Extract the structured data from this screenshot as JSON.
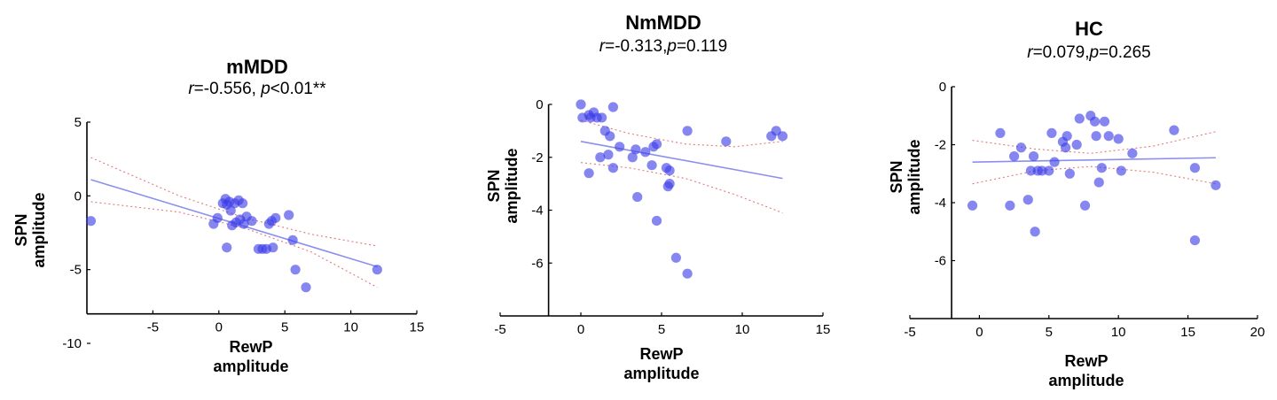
{
  "chart_data": [
    {
      "type": "scatter",
      "title": "mMDD",
      "stat": {
        "r_label": "r",
        "r_text": "=-0.556, ",
        "p_label": "p",
        "p_text": "<0.01**"
      },
      "xlabel": [
        "RewP",
        "amplitude"
      ],
      "ylabel": [
        "SPN",
        "amplitude"
      ],
      "xlim": [
        -10,
        15
      ],
      "ylim": [
        -10,
        5
      ],
      "xticks": [
        -5,
        0,
        5,
        10,
        15
      ],
      "yticks": [
        -10,
        -5,
        0,
        5
      ],
      "points": [
        [
          -9.7,
          -1.7
        ],
        [
          -0.4,
          -1.9
        ],
        [
          -0.1,
          -1.5
        ],
        [
          0.3,
          -0.5
        ],
        [
          0.5,
          -0.2
        ],
        [
          0.6,
          -0.6
        ],
        [
          0.8,
          -0.4
        ],
        [
          0.9,
          -1.0
        ],
        [
          1.0,
          -2.0
        ],
        [
          1.2,
          -0.5
        ],
        [
          1.3,
          -1.8
        ],
        [
          1.5,
          -0.3
        ],
        [
          1.6,
          -1.6
        ],
        [
          1.8,
          -0.5
        ],
        [
          1.9,
          -1.9
        ],
        [
          2.1,
          -1.4
        ],
        [
          2.5,
          -1.7
        ],
        [
          0.6,
          -3.5
        ],
        [
          3.0,
          -3.6
        ],
        [
          3.3,
          -3.6
        ],
        [
          3.6,
          -3.6
        ],
        [
          3.8,
          -1.9
        ],
        [
          4.0,
          -1.7
        ],
        [
          4.3,
          -1.5
        ],
        [
          4.1,
          -3.5
        ],
        [
          5.3,
          -1.3
        ],
        [
          5.6,
          -3.0
        ],
        [
          5.8,
          -5.0
        ],
        [
          6.6,
          -6.2
        ],
        [
          12.0,
          -5.0
        ]
      ],
      "fit": [
        [
          -9.7,
          1.1
        ],
        [
          12.0,
          -4.8
        ]
      ],
      "ci_upper": [
        [
          -9.7,
          2.6
        ],
        [
          -3.0,
          0.0
        ],
        [
          2.0,
          -1.5
        ],
        [
          7.0,
          -2.6
        ],
        [
          12.0,
          -3.4
        ]
      ],
      "ci_lower": [
        [
          -9.7,
          -0.4
        ],
        [
          -3.0,
          -1.1
        ],
        [
          2.0,
          -2.2
        ],
        [
          7.0,
          -3.8
        ],
        [
          12.0,
          -6.2
        ]
      ]
    },
    {
      "type": "scatter",
      "title": "NmMDD",
      "stat": {
        "r_label": "r",
        "r_text": "=-0.313,",
        "p_label": "p",
        "p_text": "=0.119"
      },
      "xlabel": [
        "RewP",
        "amplitude"
      ],
      "ylabel": [
        "SPN",
        "amplitude"
      ],
      "xlim": [
        -5,
        15
      ],
      "ylim": [
        -8,
        0
      ],
      "xticks": [
        -5,
        0,
        5,
        10,
        15
      ],
      "yticks": [
        -6,
        -4,
        -2,
        0
      ],
      "points": [
        [
          0.0,
          0.0
        ],
        [
          0.1,
          -0.5
        ],
        [
          0.5,
          -0.4
        ],
        [
          0.6,
          -0.5
        ],
        [
          0.8,
          -0.3
        ],
        [
          1.0,
          -0.5
        ],
        [
          1.3,
          -0.5
        ],
        [
          1.5,
          -1.0
        ],
        [
          1.8,
          -1.2
        ],
        [
          2.0,
          -0.1
        ],
        [
          0.5,
          -2.6
        ],
        [
          1.2,
          -2.0
        ],
        [
          1.7,
          -1.9
        ],
        [
          2.0,
          -2.4
        ],
        [
          2.4,
          -1.6
        ],
        [
          3.2,
          -2.0
        ],
        [
          3.4,
          -1.7
        ],
        [
          3.5,
          -3.5
        ],
        [
          4.0,
          -1.8
        ],
        [
          4.4,
          -2.3
        ],
        [
          4.5,
          -1.6
        ],
        [
          4.7,
          -1.5
        ],
        [
          4.7,
          -4.4
        ],
        [
          5.3,
          -2.4
        ],
        [
          5.4,
          -3.1
        ],
        [
          5.5,
          -3.0
        ],
        [
          5.5,
          -2.5
        ],
        [
          5.9,
          -5.8
        ],
        [
          6.6,
          -6.4
        ],
        [
          6.6,
          -1.0
        ],
        [
          9.0,
          -1.4
        ],
        [
          11.8,
          -1.2
        ],
        [
          12.1,
          -1.0
        ],
        [
          12.5,
          -1.2
        ]
      ],
      "fit": [
        [
          0.0,
          -1.4
        ],
        [
          12.5,
          -2.8
        ]
      ],
      "ci_upper": [
        [
          0.0,
          -0.6
        ],
        [
          3.0,
          -1.1
        ],
        [
          6.5,
          -1.5
        ],
        [
          9.5,
          -1.6
        ],
        [
          12.5,
          -1.4
        ]
      ],
      "ci_lower": [
        [
          0.0,
          -2.2
        ],
        [
          3.0,
          -2.4
        ],
        [
          6.5,
          -2.8
        ],
        [
          9.5,
          -3.4
        ],
        [
          12.5,
          -4.1
        ]
      ]
    },
    {
      "type": "scatter",
      "title": "HC",
      "stat": {
        "r_label": "r",
        "r_text": "=0.079,",
        "p_label": "p",
        "p_text": "=0.265"
      },
      "xlabel": [
        "RewP",
        "amplitude"
      ],
      "ylabel": [
        "SPN",
        "amplitude"
      ],
      "xlim": [
        -5,
        20
      ],
      "ylim": [
        -8,
        0
      ],
      "xticks": [
        -5,
        0,
        5,
        10,
        15,
        20
      ],
      "yticks": [
        -6,
        -4,
        -2,
        0
      ],
      "points": [
        [
          -0.5,
          -4.1
        ],
        [
          1.5,
          -1.6
        ],
        [
          2.2,
          -4.1
        ],
        [
          2.5,
          -2.4
        ],
        [
          3.0,
          -2.1
        ],
        [
          3.5,
          -3.9
        ],
        [
          3.7,
          -2.9
        ],
        [
          3.9,
          -2.4
        ],
        [
          4.0,
          -5.0
        ],
        [
          4.2,
          -2.9
        ],
        [
          4.5,
          -2.9
        ],
        [
          5.0,
          -2.9
        ],
        [
          5.2,
          -1.6
        ],
        [
          5.4,
          -2.6
        ],
        [
          6.0,
          -1.9
        ],
        [
          6.2,
          -2.1
        ],
        [
          6.3,
          -1.7
        ],
        [
          6.5,
          -3.0
        ],
        [
          7.0,
          -2.0
        ],
        [
          7.2,
          -1.1
        ],
        [
          7.6,
          -4.1
        ],
        [
          8.0,
          -1.0
        ],
        [
          8.3,
          -1.2
        ],
        [
          8.4,
          -1.7
        ],
        [
          8.6,
          -3.3
        ],
        [
          8.8,
          -2.8
        ],
        [
          9.0,
          -1.2
        ],
        [
          9.3,
          -1.7
        ],
        [
          10.0,
          -1.8
        ],
        [
          10.2,
          -2.9
        ],
        [
          11.0,
          -2.3
        ],
        [
          14.0,
          -1.5
        ],
        [
          15.5,
          -5.3
        ],
        [
          15.5,
          -2.8
        ],
        [
          17.0,
          -3.4
        ]
      ],
      "fit": [
        [
          -0.5,
          -2.6
        ],
        [
          17.0,
          -2.45
        ]
      ],
      "ci_upper": [
        [
          -0.5,
          -1.85
        ],
        [
          4.0,
          -2.15
        ],
        [
          8.0,
          -2.3
        ],
        [
          12.5,
          -2.05
        ],
        [
          17.0,
          -1.55
        ]
      ],
      "ci_lower": [
        [
          -0.5,
          -3.35
        ],
        [
          4.0,
          -2.9
        ],
        [
          8.0,
          -2.75
        ],
        [
          12.5,
          -2.95
        ],
        [
          17.0,
          -3.35
        ]
      ]
    }
  ]
}
